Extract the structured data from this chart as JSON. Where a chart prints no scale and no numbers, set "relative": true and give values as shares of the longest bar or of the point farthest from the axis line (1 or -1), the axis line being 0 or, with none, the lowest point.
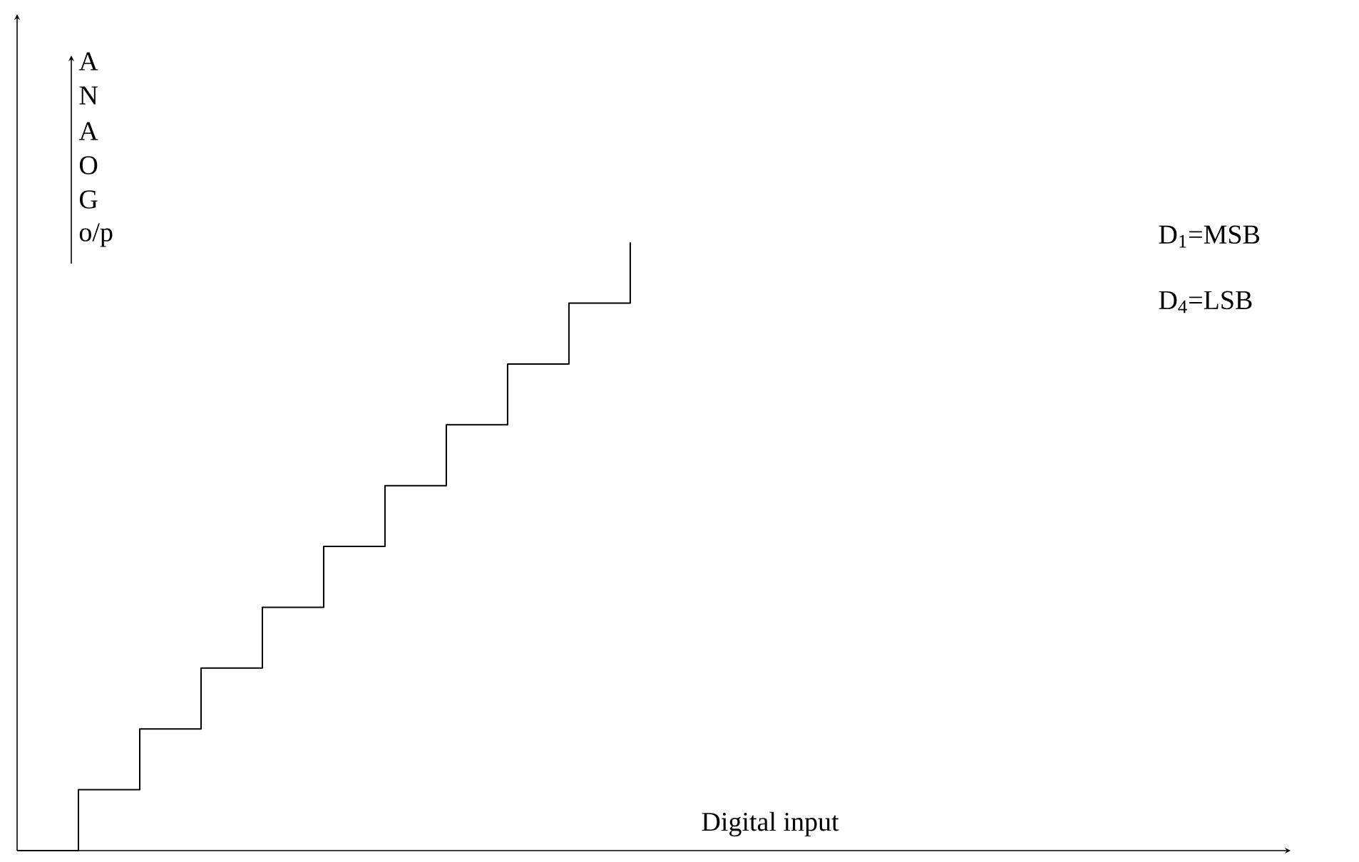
{
  "chart_data": {
    "type": "step",
    "relative": true,
    "xlabel": "Digital input",
    "color": "#000000",
    "categories": [
      null,
      null,
      null,
      null,
      null,
      null,
      null,
      null,
      null,
      null,
      null
    ],
    "values": [
      0,
      0.1,
      0.2,
      0.3,
      0.4,
      0.5,
      0.6,
      0.7,
      0.8,
      0.9,
      1.0
    ],
    "annotations": [
      "A",
      "N",
      "A",
      "O",
      "G",
      "o/p",
      "D$_{1}$=MSB",
      "D$_{4}$=LSB"
    ]
  }
}
